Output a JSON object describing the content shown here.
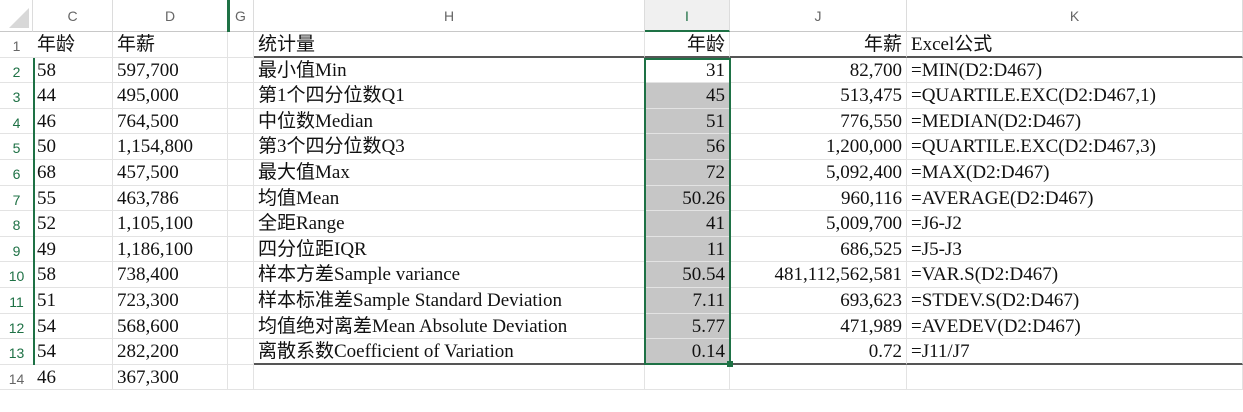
{
  "columns": [
    "C",
    "D",
    "G",
    "H",
    "I",
    "J",
    "K"
  ],
  "rows": [
    "1",
    "2",
    "3",
    "4",
    "5",
    "6",
    "7",
    "8",
    "9",
    "10",
    "11",
    "12",
    "13",
    "14"
  ],
  "header": {
    "c": "年龄",
    "d": "年薪",
    "h": "统计量",
    "i": "年龄",
    "j": "年薪",
    "k": "Excel公式"
  },
  "data_c": [
    "58",
    "44",
    "46",
    "50",
    "68",
    "55",
    "52",
    "49",
    "58",
    "51",
    "54",
    "54",
    "46"
  ],
  "data_d": [
    "597,700",
    "495,000",
    "764,500",
    "1,154,800",
    "457,500",
    "463,786",
    "1,105,100",
    "1,186,100",
    "738,400",
    "723,300",
    "568,600",
    "282,200",
    "367,300"
  ],
  "stats": [
    {
      "name": "最小值Min",
      "age": "31",
      "salary": "82,700",
      "formula": "=MIN(D2:D467)"
    },
    {
      "name": "第1个四分位数Q1",
      "age": "45",
      "salary": "513,475",
      "formula": "=QUARTILE.EXC(D2:D467,1)"
    },
    {
      "name": "中位数Median",
      "age": "51",
      "salary": "776,550",
      "formula": "=MEDIAN(D2:D467)"
    },
    {
      "name": "第3个四分位数Q3",
      "age": "56",
      "salary": "1,200,000",
      "formula": "=QUARTILE.EXC(D2:D467,3)"
    },
    {
      "name": "最大值Max",
      "age": "72",
      "salary": "5,092,400",
      "formula": "=MAX(D2:D467)"
    },
    {
      "name": "均值Mean",
      "age": "50.26",
      "salary": "960,116",
      "formula": "=AVERAGE(D2:D467)"
    },
    {
      "name": "全距Range",
      "age": "41",
      "salary": "5,009,700",
      "formula": "=J6-J2"
    },
    {
      "name": "四分位距IQR",
      "age": "11",
      "salary": "686,525",
      "formula": "=J5-J3"
    },
    {
      "name": "样本方差Sample variance",
      "age": "50.54",
      "salary": "481,112,562,581",
      "formula": "=VAR.S(D2:D467)"
    },
    {
      "name": "样本标准差Sample Standard Deviation",
      "age": "7.11",
      "salary": "693,623",
      "formula": "=STDEV.S(D2:D467)"
    },
    {
      "name": "均值绝对离差Mean Absolute Deviation",
      "age": "5.77",
      "salary": "471,989",
      "formula": "=AVEDEV(D2:D467)"
    },
    {
      "name": "离散系数Coefficient of Variation",
      "age": "0.14",
      "salary": "0.72",
      "formula": "=J11/J7"
    }
  ],
  "colors": {
    "selection": "#1e7145",
    "selected_fill": "#c6c6c6"
  }
}
